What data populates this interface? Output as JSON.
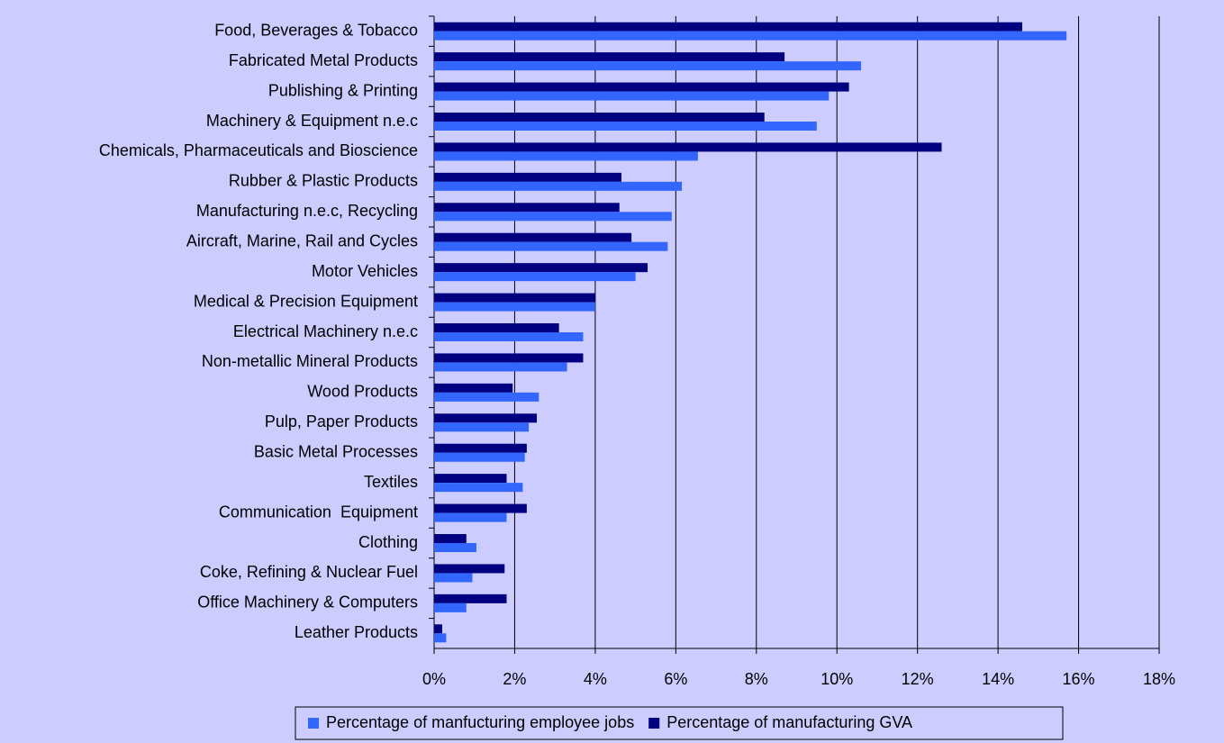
{
  "chart_data": {
    "type": "hbar",
    "categories": [
      "Food, Beverages & Tobacco",
      "Fabricated Metal Products",
      "Publishing & Printing",
      "Machinery & Equipment n.e.c",
      "Chemicals, Pharmaceuticals and Bioscience",
      "Rubber & Plastic Products",
      "Manufacturing n.e.c, Recycling",
      "Aircraft, Marine, Rail and Cycles",
      "Motor Vehicles",
      "Medical & Precision Equipment",
      "Electrical Machinery n.e.c",
      "Non-metallic Mineral Products",
      "Wood Products",
      "Pulp, Paper Products",
      "Basic Metal Processes",
      "Textiles",
      "Communication  Equipment",
      "Clothing",
      "Coke, Refining & Nuclear Fuel",
      "Office Machinery & Computers",
      "Leather Products"
    ],
    "series": [
      {
        "name": "Percentage of manfucturing employee jobs",
        "color": "#3366ff",
        "values": [
          15.7,
          10.6,
          9.8,
          9.5,
          6.55,
          6.15,
          5.9,
          5.8,
          5.0,
          4.0,
          3.7,
          3.3,
          2.6,
          2.35,
          2.25,
          2.2,
          1.8,
          1.05,
          0.95,
          0.8,
          0.3
        ]
      },
      {
        "name": "Percentage of manufacturing GVA",
        "color": "#000080",
        "values": [
          14.6,
          8.7,
          10.3,
          8.2,
          12.6,
          4.65,
          4.6,
          4.9,
          5.3,
          4.0,
          3.1,
          3.7,
          1.95,
          2.55,
          2.3,
          1.8,
          2.3,
          0.8,
          1.75,
          1.8,
          0.2
        ]
      }
    ],
    "xlim": [
      0,
      18
    ],
    "xticks": [
      {
        "value": 0,
        "label": "0%"
      },
      {
        "value": 2,
        "label": "2%"
      },
      {
        "value": 4,
        "label": "4%"
      },
      {
        "value": 6,
        "label": "6%"
      },
      {
        "value": 8,
        "label": "8%"
      },
      {
        "value": 10,
        "label": "10%"
      },
      {
        "value": 12,
        "label": "12%"
      },
      {
        "value": 14,
        "label": "14%"
      },
      {
        "value": 16,
        "label": "16%"
      },
      {
        "value": 18,
        "label": "18%"
      }
    ],
    "grid": true,
    "legend": "bottom"
  }
}
